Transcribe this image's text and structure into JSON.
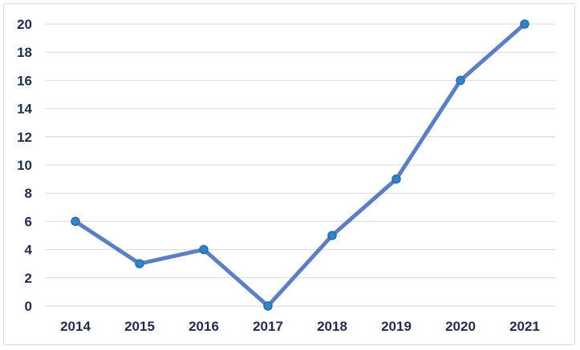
{
  "chart_data": {
    "type": "line",
    "categories": [
      "2014",
      "2015",
      "2016",
      "2017",
      "2018",
      "2019",
      "2020",
      "2021"
    ],
    "values": [
      6,
      3,
      4,
      0,
      5,
      9,
      16,
      20
    ],
    "title": "",
    "xlabel": "",
    "ylabel": "",
    "ylim": [
      0,
      20
    ],
    "yticks": [
      "0",
      "2",
      "4",
      "6",
      "8",
      "10",
      "12",
      "14",
      "16",
      "18",
      "20"
    ],
    "grid": true,
    "legend": "none",
    "colors": {
      "line": "#5b7fc4",
      "marker_fill": "#2e86c9",
      "marker_stroke": "#2a6aa8",
      "grid": "#d9d9d9",
      "text": "#1f2d4d"
    }
  }
}
